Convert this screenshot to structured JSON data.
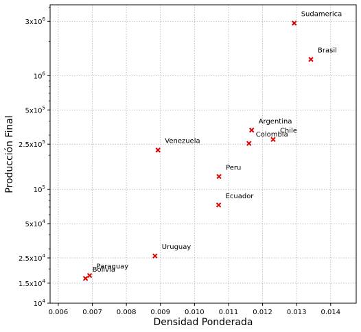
{
  "chart_data": {
    "type": "scatter",
    "xlabel": "Densidad Ponderada",
    "ylabel": "Producción Final",
    "xlim": [
      0.00576,
      0.01475
    ],
    "ylim": [
      10000,
      4200000
    ],
    "yscale": "log",
    "grid": true,
    "marker": "x",
    "marker_color": "#dd0000",
    "x_ticks": [
      0.006,
      0.007,
      0.008,
      0.009,
      0.01,
      0.011,
      0.012,
      0.013,
      0.014
    ],
    "x_tick_labels": [
      "0.006",
      "0.007",
      "0.008",
      "0.009",
      "0.010",
      "0.011",
      "0.012",
      "0.013",
      "0.014"
    ],
    "y_ticks": [
      {
        "value": 3000000,
        "base": "3x10",
        "exp": "6"
      },
      {
        "value": 1000000,
        "base": "10",
        "exp": "6"
      },
      {
        "value": 500000,
        "base": "5x10",
        "exp": "5"
      },
      {
        "value": 250000,
        "base": "2.5x10",
        "exp": "5"
      },
      {
        "value": 100000,
        "base": "10",
        "exp": "5"
      },
      {
        "value": 50000,
        "base": "5x10",
        "exp": "4"
      },
      {
        "value": 25000,
        "base": "2.5x10",
        "exp": "4"
      },
      {
        "value": 15000,
        "base": "1.5x10",
        "exp": "4"
      },
      {
        "value": 10000,
        "base": "10",
        "exp": "4"
      }
    ],
    "points": [
      {
        "label": "Sudamerica",
        "x": 0.01293,
        "y": 2900000
      },
      {
        "label": "Brasil",
        "x": 0.01342,
        "y": 1390000
      },
      {
        "label": "Argentina",
        "x": 0.01168,
        "y": 332000
      },
      {
        "label": "Chile",
        "x": 0.01231,
        "y": 275000
      },
      {
        "label": "Colombia",
        "x": 0.0116,
        "y": 254000
      },
      {
        "label": "Venezuela",
        "x": 0.00893,
        "y": 222000
      },
      {
        "label": "Peru",
        "x": 0.01072,
        "y": 130000
      },
      {
        "label": "Ecuador",
        "x": 0.01071,
        "y": 73000
      },
      {
        "label": "Uruguay",
        "x": 0.00884,
        "y": 26000
      },
      {
        "label": "Paraguay",
        "x": 0.00692,
        "y": 17500
      },
      {
        "label": "Bolivia",
        "x": 0.0068,
        "y": 16500
      }
    ]
  }
}
